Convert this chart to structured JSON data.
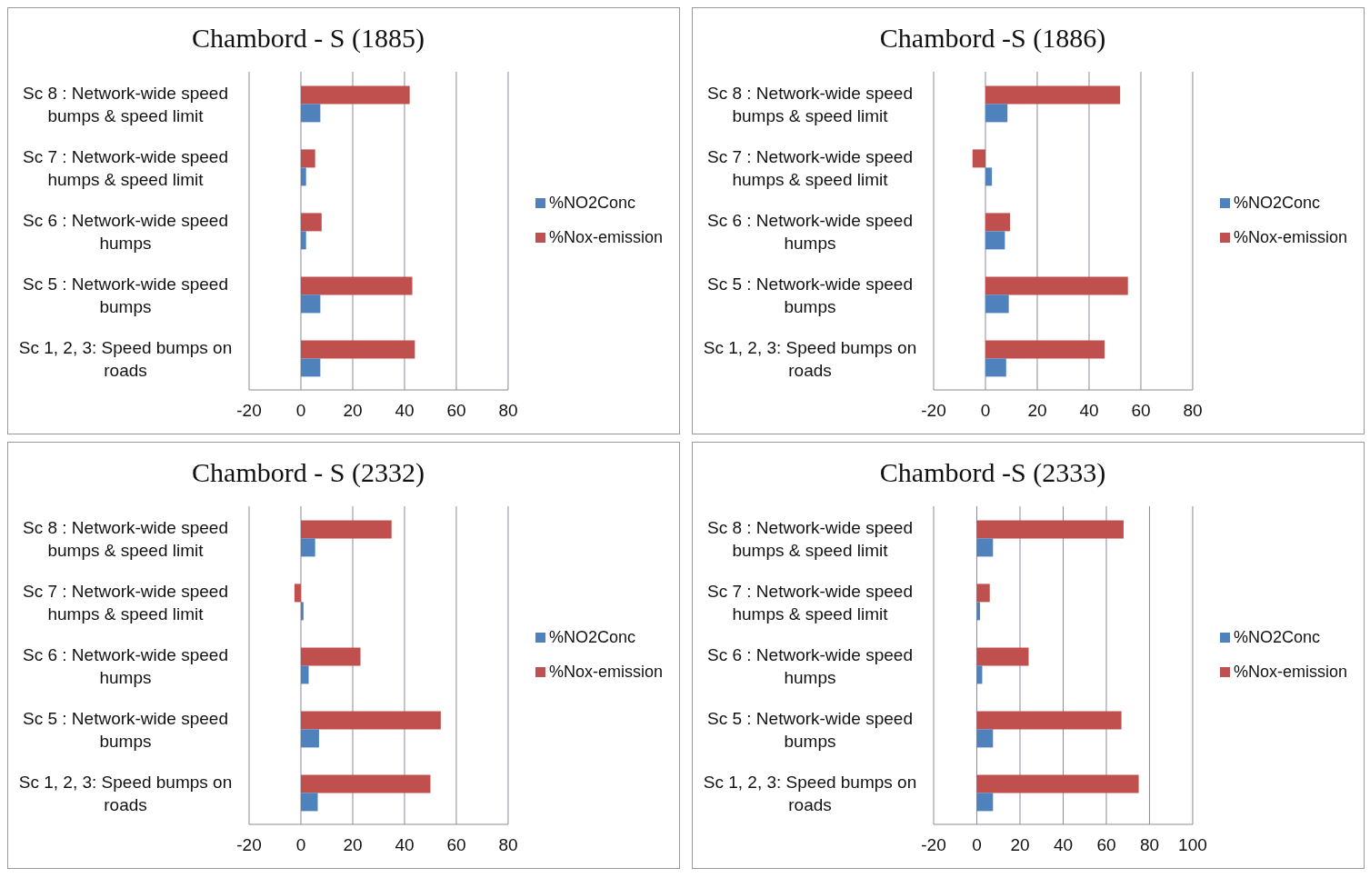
{
  "chart_data": [
    {
      "type": "bar",
      "orientation": "horizontal",
      "title": "Chambord - S (1885)",
      "categories": [
        "Sc 8 : Network-wide speed bumps & speed limit",
        "Sc 7 : Network-wide speed humps & speed limit",
        "Sc 6 : Network-wide speed humps",
        "Sc 5 : Network-wide speed bumps",
        "Sc 1, 2, 3: Speed bumps on roads"
      ],
      "series": [
        {
          "name": "%Nox-emission",
          "color": "#c0504d",
          "values": [
            42,
            5.5,
            8,
            43,
            44
          ]
        },
        {
          "name": "%NO2Conc",
          "color": "#4f81bd",
          "values": [
            7.5,
            2,
            2,
            7.5,
            7.5
          ]
        }
      ],
      "xlim": [
        -20,
        80
      ],
      "xticks": [
        -20,
        0,
        20,
        40,
        60,
        80
      ],
      "grid": "x",
      "legend": "right"
    },
    {
      "type": "bar",
      "orientation": "horizontal",
      "title": "Chambord -S (1886)",
      "categories": [
        "Sc 8 : Network-wide speed bumps & speed limit",
        "Sc 7 : Network-wide speed humps & speed limit",
        "Sc 6 : Network-wide speed humps",
        "Sc 5 : Network-wide speed bumps",
        "Sc 1, 2, 3: Speed bumps on roads"
      ],
      "series": [
        {
          "name": "%Nox-emission",
          "color": "#c0504d",
          "values": [
            52,
            -5,
            9.5,
            55,
            46
          ]
        },
        {
          "name": "%NO2Conc",
          "color": "#4f81bd",
          "values": [
            8.5,
            2.5,
            7.5,
            9,
            8
          ]
        }
      ],
      "xlim": [
        -20,
        80
      ],
      "xticks": [
        -20,
        0,
        20,
        40,
        60,
        80
      ],
      "grid": "x",
      "legend": "right"
    },
    {
      "type": "bar",
      "orientation": "horizontal",
      "title": "Chambord - S (2332)",
      "categories": [
        "Sc 8 : Network-wide speed bumps & speed limit",
        "Sc 7 : Network-wide speed humps & speed limit",
        "Sc 6 : Network-wide speed humps",
        "Sc 5 : Network-wide speed bumps",
        "Sc 1, 2, 3: Speed bumps on roads"
      ],
      "series": [
        {
          "name": "%Nox-emission",
          "color": "#c0504d",
          "values": [
            35,
            -2.5,
            23,
            54,
            50
          ]
        },
        {
          "name": "%NO2Conc",
          "color": "#4f81bd",
          "values": [
            5.5,
            1,
            3,
            7,
            6.5
          ]
        }
      ],
      "xlim": [
        -20,
        80
      ],
      "xticks": [
        -20,
        0,
        20,
        40,
        60,
        80
      ],
      "grid": "x",
      "legend": "right"
    },
    {
      "type": "bar",
      "orientation": "horizontal",
      "title": "Chambord -S (2333)",
      "categories": [
        "Sc 8 : Network-wide speed bumps & speed limit",
        "Sc 7 : Network-wide speed humps & speed limit",
        "Sc 6 : Network-wide speed humps",
        "Sc 5 : Network-wide speed bumps",
        "Sc 1, 2, 3: Speed bumps on roads"
      ],
      "series": [
        {
          "name": "%Nox-emission",
          "color": "#c0504d",
          "values": [
            68,
            6,
            24,
            67,
            75
          ]
        },
        {
          "name": "%NO2Conc",
          "color": "#4f81bd",
          "values": [
            7.5,
            1.5,
            2.5,
            7.5,
            7.5
          ]
        }
      ],
      "xlim": [
        -20,
        100
      ],
      "xticks": [
        -20,
        0,
        20,
        40,
        60,
        80,
        100
      ],
      "grid": "x",
      "legend": "right"
    }
  ]
}
